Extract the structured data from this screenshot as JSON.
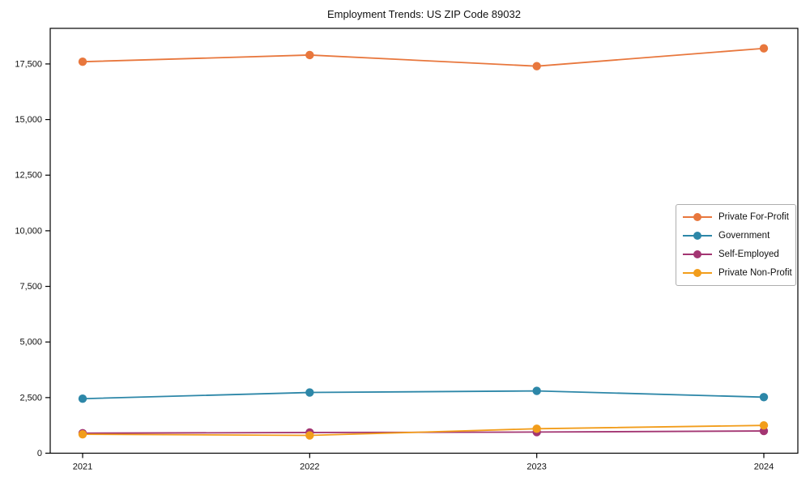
{
  "title": "Employment Trends: US ZIP Code 89032",
  "chart_data": {
    "type": "line",
    "title": "Employment Trends: US ZIP Code 89032",
    "x_labels": [
      "2021",
      "2022",
      "2023",
      "2024"
    ],
    "series": [
      {
        "name": "Private For-Profit",
        "color": "#e8773d",
        "values": [
          17600,
          17900,
          17400,
          18200
        ]
      },
      {
        "name": "Government",
        "color": "#2d87a8",
        "values": [
          2450,
          2730,
          2800,
          2520
        ]
      },
      {
        "name": "Self-Employed",
        "color": "#a33572",
        "values": [
          900,
          930,
          950,
          1000
        ]
      },
      {
        "name": "Private Non-Profit",
        "color": "#f29d1b",
        "values": [
          850,
          800,
          1100,
          1250
        ]
      }
    ],
    "y_ticks": [
      0,
      2500,
      5000,
      7500,
      10000,
      12500,
      15000,
      17500
    ],
    "y_tick_labels": [
      "0",
      "2,500",
      "5,000",
      "7,500",
      "10,000",
      "12,500",
      "15,000",
      "17,500"
    ],
    "ylim": [
      0,
      19100
    ],
    "xlabel": "",
    "ylabel": "",
    "grid": false,
    "marker": "circle",
    "legend_position": "center-right"
  }
}
